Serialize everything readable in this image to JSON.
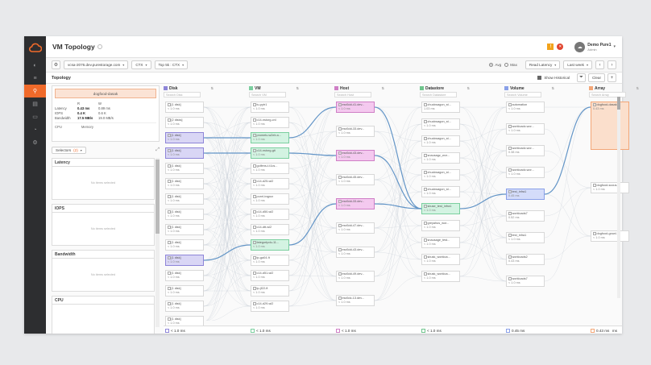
{
  "app": {
    "title": "VM Topology"
  },
  "header": {
    "user_name": "Demo Pure1",
    "user_role": "Admin",
    "alert_badge": "!",
    "error_badge": "×"
  },
  "toolbar": {
    "array_select": "vcsa-2076.dev.purestorage.com",
    "scope_select": "CTX",
    "sort_select": "Top 5k : CTX",
    "avg_label": "Avg",
    "max_label": "Max",
    "metric_select": "Read Latency",
    "time_select": "Last week"
  },
  "topology": {
    "title": "Topology",
    "show_historical": "Show Historical",
    "clear_label": "Clear"
  },
  "selection": {
    "chip": "dogfood-dasak",
    "metric_headers": [
      "",
      "R",
      "W",
      ""
    ],
    "rows": [
      [
        "Latency",
        "0.43 ms",
        "0.89 ms",
        ""
      ],
      [
        "IOPS",
        "0.4 K",
        "0.6 K",
        ""
      ],
      [
        "Bandwidth",
        "17.5 MB/s",
        "19.0 MB/s",
        ""
      ]
    ],
    "cpu_label": "CPU",
    "memory_label": "Memory",
    "selectors_label": "Selectors",
    "selectors_count": "(2)"
  },
  "panels": [
    {
      "title": "Latency",
      "empty": "No items selected"
    },
    {
      "title": "IOPS",
      "empty": "No items selected"
    },
    {
      "title": "Bandwidth",
      "empty": "No items selected"
    },
    {
      "title": "CPU",
      "empty": ""
    }
  ],
  "columns": [
    {
      "title": "Disk",
      "search": "Search Disk",
      "color": "#8e85d8",
      "footer": "< 1.0 ms"
    },
    {
      "title": "VM",
      "search": "Search VM",
      "color": "#7bcf9f",
      "footer": "< 1.0 ms"
    },
    {
      "title": "Host",
      "search": "Search Host",
      "color": "#cf7fc6",
      "footer": "< 1.0 ms"
    },
    {
      "title": "Datastore",
      "search": "Search Datastore",
      "color": "#6fc58d",
      "footer": "< 1.0 ms"
    },
    {
      "title": "Volume",
      "search": "Search Volume",
      "color": "#8aa0e8",
      "footer": "0.45 ms"
    },
    {
      "title": "Array",
      "search": "Search Array",
      "color": "#f3a677",
      "footer": "0.43 ms"
    }
  ],
  "footer_unit": "ms",
  "nodes": {
    "disk": [
      {
        "label": "[1 disk]",
        "lat": "< 1.0 ms",
        "hl": ""
      },
      {
        "label": "[2 disks]",
        "lat": "< 1.0 ms",
        "hl": ""
      },
      {
        "label": "[1 disk]",
        "lat": "< 1.0 ms",
        "hl": "pur"
      },
      {
        "label": "[1 disk]",
        "lat": "< 1.0 ms",
        "hl": "pur"
      },
      {
        "label": "[1 disk]",
        "lat": "< 1.0 ms",
        "hl": ""
      },
      {
        "label": "[1 disk]",
        "lat": "< 1.0 ms",
        "hl": ""
      },
      {
        "label": "[1 disk]",
        "lat": "< 1.0 ms",
        "hl": ""
      },
      {
        "label": "[1 disk]",
        "lat": "< 1.0 ms",
        "hl": ""
      },
      {
        "label": "[1 disk]",
        "lat": "< 1.0 ms",
        "hl": ""
      },
      {
        "label": "[1 disk]",
        "lat": "< 1.0 ms",
        "hl": ""
      },
      {
        "label": "[1 disk]",
        "lat": "< 1.0 ms",
        "hl": "pur"
      },
      {
        "label": "[1 disk]",
        "lat": "< 1.0 ms",
        "hl": ""
      },
      {
        "label": "[1 disk]",
        "lat": "< 1.0 ms",
        "hl": ""
      },
      {
        "label": "[1 disk]",
        "lat": "< 1.0 ms",
        "hl": ""
      },
      {
        "label": "[1 disk]",
        "lat": "< 1.0 ms",
        "hl": ""
      }
    ],
    "vm": [
      {
        "label": "tu-pytr1",
        "lat": "< 1.0 ms",
        "hl": ""
      },
      {
        "label": "c14-nstorg-cnl",
        "lat": "< 1.0 ms",
        "hl": ""
      },
      {
        "label": "prometu.w2eb.a...",
        "lat": "< 1.0 ms",
        "hl": "grn"
      },
      {
        "label": "c14-nstorg-git",
        "lat": "< 1.0 ms",
        "hl": "grn"
      },
      {
        "label": "golfens-t-t1cs...",
        "lat": "< 1.0 ms",
        "hl": ""
      },
      {
        "label": "c14-d25-wl2",
        "lat": "< 1.0 ms",
        "hl": ""
      },
      {
        "label": "punrl-ivqpux",
        "lat": "< 1.0 ms",
        "hl": ""
      },
      {
        "label": "c14-d50-wl2",
        "lat": "< 1.0 ms",
        "hl": ""
      },
      {
        "label": "c14-dtt-wl2",
        "lat": "< 1.0 ms",
        "hl": ""
      },
      {
        "label": "fategortpdu-11...",
        "lat": "< 1.0 ms",
        "hl": "grn"
      },
      {
        "label": "tp-ga04-ft",
        "lat": "< 1.0 ms",
        "hl": ""
      },
      {
        "label": "c14-d51-wl2",
        "lat": "< 1.0 ms",
        "hl": ""
      },
      {
        "label": "tp-jf22-ft",
        "lat": "< 1.0 ms",
        "hl": ""
      },
      {
        "label": "c14-d29-wl2",
        "lat": "< 1.0 ms",
        "hl": ""
      }
    ],
    "host": [
      {
        "label": "esx5dd-41.dev...",
        "lat": "< 1.0 ms",
        "hl": "pnk"
      },
      {
        "label": "esx5dd-33.dev...",
        "lat": "< 1.0 ms",
        "hl": ""
      },
      {
        "label": "esx5dd-43.dev...",
        "lat": "< 1.0 ms",
        "hl": "pnk"
      },
      {
        "label": "esx5dd-45.dev...",
        "lat": "< 1.0 ms",
        "hl": ""
      },
      {
        "label": "esx5dd-33.dev...",
        "lat": "< 1.0 ms",
        "hl": "pnk"
      },
      {
        "label": "esx5dd-47.dev...",
        "lat": "< 1.0 ms",
        "hl": ""
      },
      {
        "label": "esx5dd-43.dev...",
        "lat": "< 1.0 ms",
        "hl": ""
      },
      {
        "label": "esx5dd-49.dev...",
        "lat": "< 1.0 ms",
        "hl": ""
      },
      {
        "label": "esx5dc-13.dev...",
        "lat": "< 1.0 ms",
        "hl": ""
      }
    ],
    "datastore": [
      {
        "label": "chuckwagon_st...",
        "lat": "1.03 ms",
        "hl": ""
      },
      {
        "label": "chuckwagon_st...",
        "lat": "< 1.0 ms",
        "hl": ""
      },
      {
        "label": "chuckwagon_st...",
        "lat": "< 1.0 ms",
        "hl": ""
      },
      {
        "label": "snausagz_wor...",
        "lat": "< 1.0 ms",
        "hl": ""
      },
      {
        "label": "chuckwagon_st...",
        "lat": "< 1.0 ms",
        "hl": ""
      },
      {
        "label": "chuckwagon_st...",
        "lat": "< 1.0 ms",
        "hl": ""
      },
      {
        "label": "sbuse_test_infra1",
        "lat": "< 1.0 ms",
        "hl": "grn"
      },
      {
        "label": "greyahus_wor...",
        "lat": "< 1.0 ms",
        "hl": ""
      },
      {
        "label": "snausage_test...",
        "lat": "< 1.0 ms",
        "hl": ""
      },
      {
        "label": "sbusk_workloa...",
        "lat": "< 1.0 ms",
        "hl": ""
      },
      {
        "label": "sbusk_workloa...",
        "lat": "< 1.0 ms",
        "hl": ""
      }
    ],
    "volume": [
      {
        "label": "automation",
        "lat": "< 1.0 ms",
        "hl": ""
      },
      {
        "label": "workloadc.wor...",
        "lat": "< 1.0 ms",
        "hl": ""
      },
      {
        "label": "workloadc.wor...",
        "lat": "0.38 ms",
        "hl": ""
      },
      {
        "label": "workloadc.wor...",
        "lat": "< 1.0 ms",
        "hl": ""
      },
      {
        "label": "test_infra1",
        "lat": "0.45 ms",
        "hl": "blu"
      },
      {
        "label": "workloads7",
        "lat": "0.52 ms",
        "hl": ""
      },
      {
        "label": "test_infra1",
        "lat": "< 1.0 ms",
        "hl": ""
      },
      {
        "label": "workloads2",
        "lat": "0.43 ms",
        "hl": ""
      },
      {
        "label": "workloads7",
        "lat": "< 1.0 ms",
        "hl": ""
      }
    ],
    "array": [
      {
        "label": "dogfood-dasak",
        "lat": "0.43 ms",
        "hl": "org"
      },
      {
        "label": "dogfood-scous...",
        "lat": "< 1.0 ms",
        "hl": ""
      },
      {
        "label": "dogfood-growl...",
        "lat": "< 1.0 ms",
        "hl": ""
      }
    ]
  }
}
